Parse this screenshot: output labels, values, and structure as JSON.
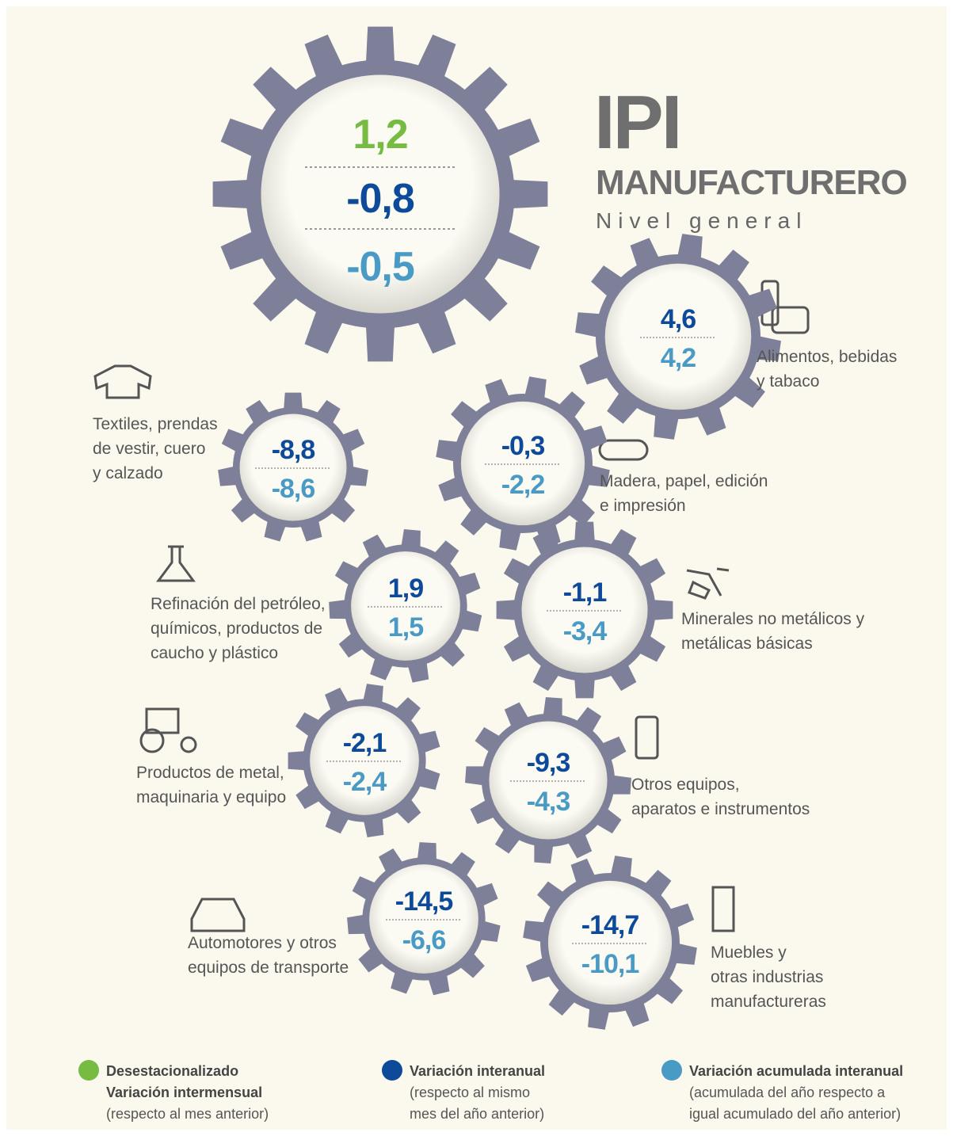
{
  "header": {
    "title": "IPI",
    "subtitle": "MANUFACTURERO",
    "caption": "Nivel general"
  },
  "general": {
    "values": [
      "1,2",
      "-0,8",
      "-0,5"
    ]
  },
  "sectors": [
    {
      "label": [
        "Alimentos, bebidas",
        "y tabaco"
      ],
      "values": [
        "4,6",
        "4,2"
      ]
    },
    {
      "label": [
        "Textiles, prendas",
        "de vestir, cuero",
        "y calzado"
      ],
      "values": [
        "-8,8",
        "-8,6"
      ]
    },
    {
      "label": [
        "Madera, papel, edición",
        "e impresión"
      ],
      "values": [
        "-0,3",
        "-2,2"
      ]
    },
    {
      "label": [
        "Refinación del petróleo,",
        "químicos, productos de",
        "caucho y plástico"
      ],
      "values": [
        "1,9",
        "1,5"
      ]
    },
    {
      "label": [
        "Minerales no metálicos y",
        "metálicas básicas"
      ],
      "values": [
        "-1,1",
        "-3,4"
      ]
    },
    {
      "label": [
        "Productos de metal,",
        "maquinaria y equipo"
      ],
      "values": [
        "-2,1",
        "-2,4"
      ]
    },
    {
      "label": [
        "Otros equipos,",
        "aparatos e instrumentos"
      ],
      "values": [
        "-9,3",
        "-4,3"
      ]
    },
    {
      "label": [
        "Automotores y otros",
        "equipos de transporte"
      ],
      "values": [
        "-14,5",
        "-6,6"
      ]
    },
    {
      "label": [
        "Muebles y",
        "otras industrias",
        "manufactureras"
      ],
      "values": [
        "-14,7",
        "-10,1"
      ]
    }
  ],
  "legend": [
    {
      "lines": [
        "Desestacionalizado",
        "Variación intermensual",
        "(respecto al mes anterior)"
      ]
    },
    {
      "lines": [
        "Variación interanual",
        "(respecto al mismo",
        "mes del año anterior)"
      ]
    },
    {
      "lines": [
        "Variación acumulada interanual",
        "(acumulada del año respecto a",
        "igual acumulado del año anterior)"
      ]
    }
  ]
}
